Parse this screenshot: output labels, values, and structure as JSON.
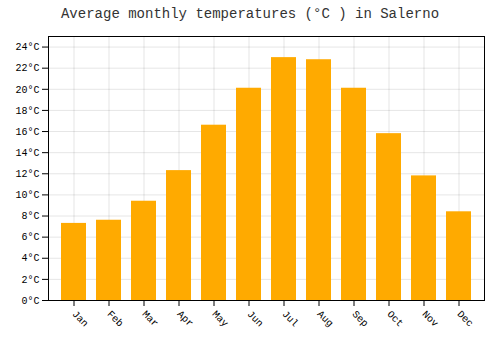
{
  "chart_data": {
    "type": "bar",
    "title": "Average monthly temperatures (°C ) in Salerno",
    "categories": [
      "Jan",
      "Feb",
      "Mar",
      "Apr",
      "May",
      "Jun",
      "Jul",
      "Aug",
      "Sep",
      "Oct",
      "Nov",
      "Dec"
    ],
    "values": [
      7.3,
      7.6,
      9.4,
      12.3,
      16.6,
      20.1,
      23.0,
      22.8,
      20.1,
      15.8,
      11.8,
      8.4
    ],
    "color": "#FFAA00",
    "ylim": [
      0,
      25
    ],
    "yticks": [
      {
        "value": 0,
        "label": "0°C"
      },
      {
        "value": 2,
        "label": "2°C"
      },
      {
        "value": 4,
        "label": "4°C"
      },
      {
        "value": 6,
        "label": "6°C"
      },
      {
        "value": 8,
        "label": "8°C"
      },
      {
        "value": 10,
        "label": "10°C"
      },
      {
        "value": 12,
        "label": "12°C"
      },
      {
        "value": 14,
        "label": "14°C"
      },
      {
        "value": 16,
        "label": "16°C"
      },
      {
        "value": 18,
        "label": "18°C"
      },
      {
        "value": 20,
        "label": "20°C"
      },
      {
        "value": 22,
        "label": "22°C"
      },
      {
        "value": 24,
        "label": "24°C"
      }
    ],
    "grid": true
  }
}
